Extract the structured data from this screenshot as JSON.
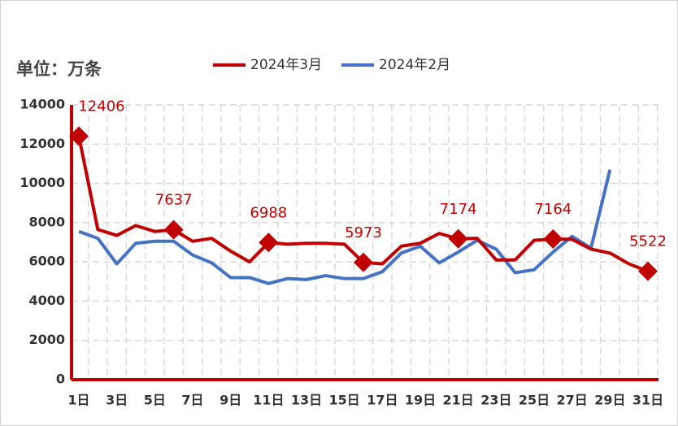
{
  "chart_data": {
    "type": "line",
    "unit_label": "单位：万条",
    "categories": [
      "1日",
      null,
      "3日",
      null,
      "5日",
      null,
      "7日",
      null,
      "9日",
      null,
      "11日",
      null,
      "13日",
      null,
      "15日",
      null,
      "17日",
      null,
      "19日",
      null,
      "21日",
      null,
      "23日",
      null,
      "25日",
      null,
      "27日",
      null,
      "29日",
      null,
      "31日"
    ],
    "series": [
      {
        "name": "2024年3月",
        "color": "#c00000",
        "values": [
          12406,
          7650,
          7350,
          7850,
          7550,
          7637,
          7050,
          7200,
          6550,
          6000,
          6988,
          6900,
          6950,
          6950,
          6900,
          5973,
          5900,
          6800,
          6950,
          7450,
          7174,
          7200,
          6100,
          6100,
          7100,
          7164,
          7150,
          6650,
          6450,
          5900,
          5522
        ],
        "value_labels": [
          "12406",
          null,
          null,
          null,
          null,
          "7637",
          null,
          null,
          null,
          null,
          "6988",
          null,
          null,
          null,
          null,
          "5973",
          null,
          null,
          null,
          null,
          "7174",
          null,
          null,
          null,
          null,
          "7164",
          null,
          null,
          null,
          null,
          "5522"
        ]
      },
      {
        "name": "2024年2月",
        "color": "#4472c4",
        "values": [
          7550,
          7200,
          5900,
          6950,
          7050,
          7050,
          6350,
          5950,
          5200,
          5200,
          4900,
          5150,
          5100,
          5300,
          5150,
          5150,
          5500,
          6450,
          6800,
          5950,
          6500,
          7100,
          6650,
          5450,
          5600,
          6500,
          7300,
          6700,
          10700,
          null,
          null
        ]
      }
    ],
    "ylim": [
      0,
      14000
    ],
    "yticks": [
      0,
      2000,
      4000,
      6000,
      8000,
      10000,
      12000,
      14000
    ],
    "grid": true
  }
}
